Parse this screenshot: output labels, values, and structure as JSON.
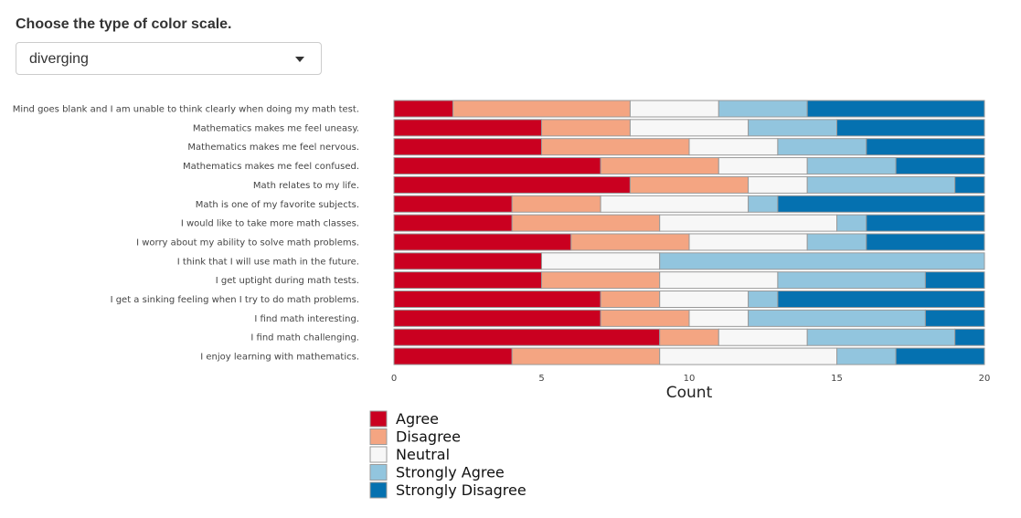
{
  "control": {
    "label": "Choose the type of color scale.",
    "selected": "diverging"
  },
  "chart_data": {
    "type": "bar",
    "orientation": "horizontal",
    "stacked": true,
    "categories": [
      "Mind goes blank and I am unable to think clearly when doing my math test.",
      "Mathematics makes me feel uneasy.",
      "Mathematics makes me feel nervous.",
      "Mathematics makes me feel confused.",
      "Math relates to my life.",
      "Math is one of my favorite subjects.",
      "I would like to take more math classes.",
      "I worry about my ability to solve math problems.",
      "I think that I will use math in the future.",
      "I get uptight during math tests.",
      "I get a sinking feeling when I try to do math problems.",
      "I find math interesting.",
      "I find math challenging.",
      "I enjoy learning with mathematics."
    ],
    "series": [
      {
        "name": "Agree",
        "color": "#ca0020",
        "values": [
          2,
          5,
          5,
          7,
          8,
          4,
          4,
          6,
          5,
          5,
          7,
          7,
          9,
          4
        ]
      },
      {
        "name": "Disagree",
        "color": "#f4a582",
        "values": [
          6,
          3,
          5,
          4,
          4,
          3,
          5,
          4,
          0,
          4,
          2,
          3,
          2,
          5
        ]
      },
      {
        "name": "Neutral",
        "color": "#f7f7f7",
        "values": [
          3,
          4,
          3,
          3,
          2,
          5,
          6,
          4,
          4,
          4,
          3,
          2,
          3,
          6
        ]
      },
      {
        "name": "Strongly Agree",
        "color": "#92c5de",
        "values": [
          3,
          3,
          3,
          3,
          5,
          1,
          1,
          2,
          11,
          5,
          1,
          6,
          5,
          2
        ]
      },
      {
        "name": "Strongly Disagree",
        "color": "#0571b0",
        "values": [
          6,
          5,
          4,
          3,
          1,
          7,
          4,
          4,
          0,
          2,
          7,
          2,
          1,
          3
        ]
      }
    ],
    "x_ticks": [
      0,
      5,
      10,
      15,
      20
    ],
    "xlim": [
      0,
      20
    ],
    "xlabel": "Count",
    "ylabel": "",
    "legend_position": "bottom-left",
    "grid": false
  }
}
